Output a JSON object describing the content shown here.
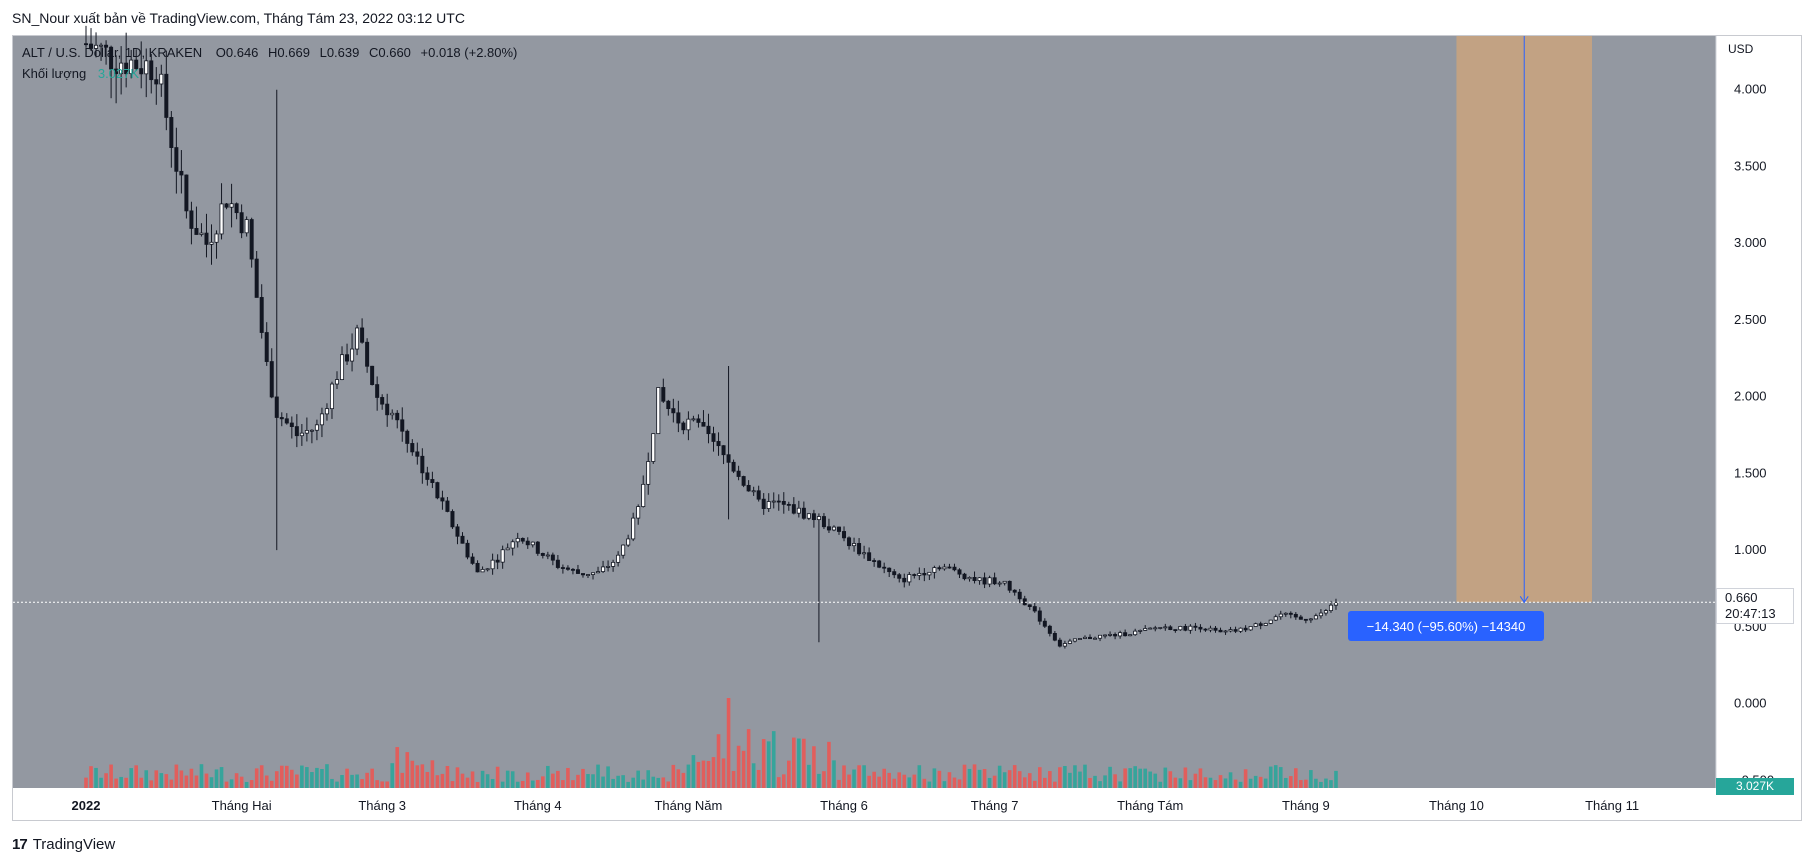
{
  "header": {
    "publish_line": "SN_Nour xuất bản về TradingView.com, Tháng Tám 23, 2022 03:12 UTC"
  },
  "legend": {
    "symbol": "ALT / U.S. Dollar, 1D, KRAKEN",
    "open": "O0.646",
    "high": "H0.669",
    "low": "L0.639",
    "close": "C0.660",
    "change": "+0.018 (+2.80%)",
    "volume_label": "Khối lượng",
    "volume_value": "3.027K"
  },
  "price_tag": {
    "price": "0.660",
    "countdown": "20:47:13"
  },
  "volume_tag": "3.027K",
  "currency": "USD",
  "measure": {
    "label": "−14.340 (−95.60%) −14340"
  },
  "footer": {
    "brand": "TradingView",
    "logo": "tradingview-logo-icon"
  },
  "colors": {
    "background": "#9398a1",
    "candle": "#131722",
    "volume_up": "#26a69a",
    "volume_down": "#ef5350",
    "measure_fill": "#d2a679",
    "measure_line": "#2962ff",
    "price_line": "#ffffff"
  },
  "chart_data": {
    "type": "candlestick",
    "title": "",
    "ylabel": "USD",
    "ylim": [
      -0.55,
      4.35
    ],
    "y_ticks": [
      4.0,
      3.5,
      3.0,
      2.5,
      2.0,
      1.5,
      1.0,
      0.5,
      0.0,
      -0.5
    ],
    "y_tick_labels": [
      "4.000",
      "3.500",
      "3.000",
      "2.500",
      "2.000",
      "1.500",
      "1.000",
      "0.500",
      "0.000",
      "−0.500"
    ],
    "x_ticks": [
      "2022",
      "Tháng Hai",
      "Tháng 3",
      "Tháng 4",
      "Tháng Năm",
      "Tháng 6",
      "Tháng 7",
      "Tháng Tám",
      "Tháng 9",
      "Tháng 10",
      "Tháng 11"
    ],
    "x_tick_days": [
      0,
      31,
      59,
      90,
      120,
      151,
      181,
      212,
      243,
      273,
      304
    ],
    "last_price": 0.66,
    "price_path": [
      [
        0,
        4.3
      ],
      [
        6,
        4.2
      ],
      [
        14,
        4.15
      ],
      [
        20,
        3.2
      ],
      [
        24,
        3.0
      ],
      [
        28,
        3.3
      ],
      [
        32,
        3.1
      ],
      [
        36,
        2.2
      ],
      [
        38,
        1.9
      ],
      [
        42,
        1.75
      ],
      [
        46,
        1.8
      ],
      [
        50,
        2.15
      ],
      [
        54,
        2.4
      ],
      [
        58,
        2.0
      ],
      [
        62,
        1.85
      ],
      [
        66,
        1.6
      ],
      [
        70,
        1.35
      ],
      [
        74,
        1.1
      ],
      [
        78,
        0.85
      ],
      [
        82,
        0.95
      ],
      [
        86,
        1.1
      ],
      [
        90,
        1.0
      ],
      [
        94,
        0.9
      ],
      [
        98,
        0.85
      ],
      [
        102,
        0.85
      ],
      [
        106,
        0.95
      ],
      [
        110,
        1.25
      ],
      [
        114,
        2.0
      ],
      [
        118,
        1.85
      ],
      [
        122,
        1.8
      ],
      [
        126,
        1.65
      ],
      [
        130,
        1.5
      ],
      [
        134,
        1.3
      ],
      [
        138,
        1.3
      ],
      [
        142,
        1.25
      ],
      [
        146,
        1.2
      ],
      [
        150,
        1.1
      ],
      [
        154,
        1.0
      ],
      [
        158,
        0.9
      ],
      [
        162,
        0.8
      ],
      [
        166,
        0.85
      ],
      [
        170,
        0.9
      ],
      [
        174,
        0.85
      ],
      [
        178,
        0.8
      ],
      [
        182,
        0.8
      ],
      [
        186,
        0.7
      ],
      [
        190,
        0.55
      ],
      [
        194,
        0.38
      ],
      [
        198,
        0.42
      ],
      [
        202,
        0.44
      ],
      [
        206,
        0.45
      ],
      [
        210,
        0.47
      ],
      [
        214,
        0.5
      ],
      [
        218,
        0.49
      ],
      [
        222,
        0.5
      ],
      [
        226,
        0.46
      ],
      [
        230,
        0.48
      ],
      [
        234,
        0.52
      ],
      [
        238,
        0.58
      ],
      [
        242,
        0.55
      ],
      [
        246,
        0.58
      ],
      [
        249,
        0.66
      ]
    ],
    "spikes": [
      {
        "day": 38,
        "high": 4.0,
        "low": 1.0
      },
      {
        "day": 128,
        "high": 2.2,
        "low": 1.2
      },
      {
        "day": 146,
        "high": 1.1,
        "low": 0.4
      }
    ],
    "measure": {
      "start_day": 273,
      "end_day": 300,
      "from_price": 15.0,
      "to_price": 0.66,
      "change": -14.34,
      "percent": -95.6,
      "ticks": -14340
    }
  }
}
